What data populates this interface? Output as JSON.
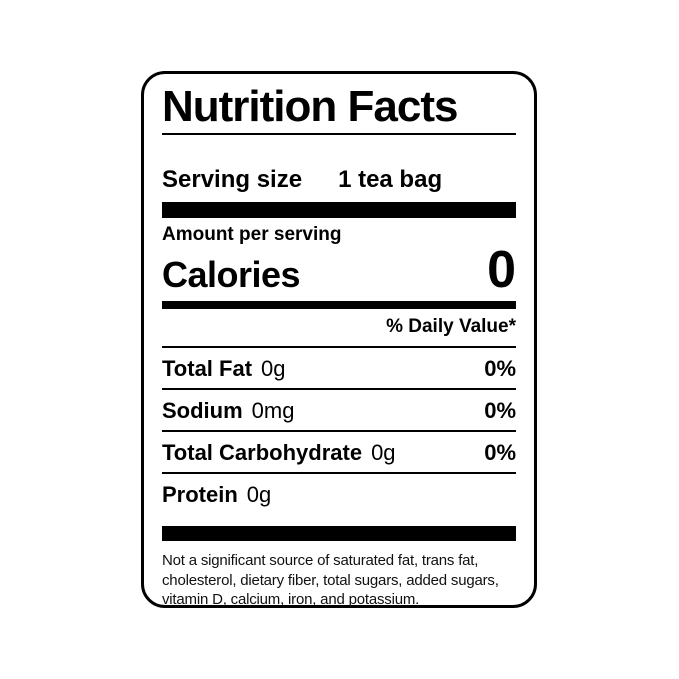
{
  "label": {
    "title": "Nutrition Facts",
    "serving": {
      "label": "Serving size",
      "value": "1 tea bag"
    },
    "amount_per_serving": "Amount per serving",
    "calories": {
      "label": "Calories",
      "value": "0"
    },
    "daily_value_header": "% Daily Value*",
    "nutrients": [
      {
        "name": "Total Fat",
        "amount": "0g",
        "dv": "0%"
      },
      {
        "name": "Sodium",
        "amount": "0mg",
        "dv": "0%"
      },
      {
        "name": "Total Carbohydrate",
        "amount": "0g",
        "dv": "0%"
      },
      {
        "name": "Protein",
        "amount": "0g",
        "dv": ""
      }
    ],
    "footnote": "Not a significant source of saturated fat, trans fat, cholesterol, dietary fiber, total sugars, added sugars, vitamin D, calcium, iron, and potassium.",
    "colors": {
      "text": "#000000",
      "background": "#ffffff",
      "border": "#000000"
    }
  }
}
